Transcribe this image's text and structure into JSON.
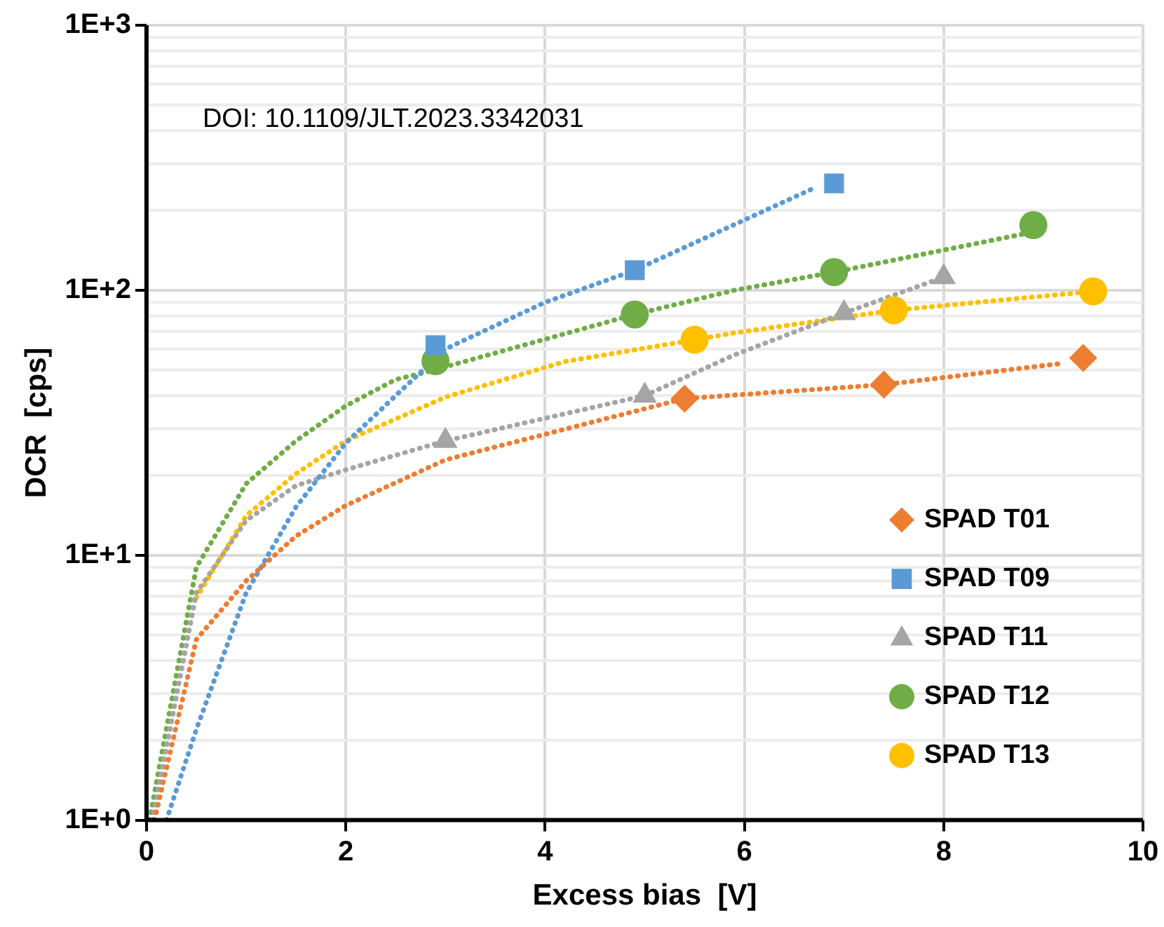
{
  "chart_data": {
    "type": "scatter",
    "xlabel": "Excess bias  [V]",
    "ylabel": "DCR  [cps]",
    "annotations": [
      "DOI: 10.1109/JLT.2023.3342031"
    ],
    "xlim": [
      0,
      10
    ],
    "xticks": [
      0,
      2,
      4,
      6,
      8,
      10
    ],
    "ylim": [
      1,
      1000
    ],
    "yticks": [
      {
        "value": 1,
        "label": "1E+0"
      },
      {
        "value": 10,
        "label": "1E+1"
      },
      {
        "value": 100,
        "label": "1E+2"
      },
      {
        "value": 1000,
        "label": "1E+3"
      }
    ],
    "log": "y",
    "grid": true,
    "legend": "bottom right",
    "series": [
      {
        "type": "line",
        "color": "#ed7d31",
        "marker": "none",
        "line_style": "dotted",
        "x": [
          0.08,
          0.5,
          1,
          1.5,
          2,
          3,
          4.2,
          5.4,
          7.4,
          9.2
        ],
        "values": [
          1,
          4.8,
          8,
          11.8,
          15.4,
          22.9,
          29.9,
          39,
          44,
          53
        ]
      },
      {
        "type": "line",
        "color": "#5b9bd5",
        "marker": "none",
        "line_style": "dotted",
        "x": [
          0.2,
          0.5,
          1,
          1.5,
          2,
          2.5,
          3,
          4,
          4.9,
          6.7
        ],
        "values": [
          1,
          2.2,
          7.2,
          15.2,
          26.5,
          40,
          60,
          90,
          119,
          243
        ]
      },
      {
        "type": "line",
        "color": "#a5a5a5",
        "marker": "none",
        "line_style": "dotted",
        "x": [
          0.06,
          0.5,
          1,
          1.5,
          2,
          2.8,
          3,
          5,
          5.9,
          7,
          8
        ],
        "values": [
          1,
          7.2,
          13.5,
          18.3,
          21,
          25.7,
          27,
          40,
          57,
          82,
          112
        ]
      },
      {
        "type": "line",
        "color": "#70ad47",
        "marker": "none",
        "line_style": "dotted",
        "x": [
          0.03,
          0.5,
          1,
          1.5,
          2,
          2.5,
          2.8,
          4.9,
          5.9,
          6.9,
          8.8
        ],
        "values": [
          1,
          9,
          18.6,
          27,
          36.6,
          46,
          49,
          81,
          100,
          117,
          163
        ]
      },
      {
        "type": "line",
        "color": "#ffc000",
        "marker": "none",
        "line_style": "dotted",
        "x": [
          0.5,
          1,
          1.5,
          2,
          3,
          4.2,
          5.5,
          5.9,
          7.5,
          9.5
        ],
        "values": [
          6.9,
          14.1,
          20.3,
          27,
          39.5,
          53.8,
          65,
          69,
          84,
          99
        ]
      },
      {
        "name": "SPAD T01",
        "color": "#ed7d31",
        "marker": "diamond",
        "x": [
          5.4,
          7.4,
          9.4
        ],
        "values": [
          39,
          44,
          55.5
        ]
      },
      {
        "name": "SPAD T09",
        "color": "#5b9bd5",
        "marker": "square",
        "x": [
          2.9,
          4.9,
          6.9
        ],
        "values": [
          62,
          119,
          253
        ]
      },
      {
        "name": "SPAD T11",
        "color": "#a5a5a5",
        "marker": "triangle",
        "x": [
          3,
          5,
          7,
          8
        ],
        "values": [
          27,
          40,
          82,
          112
        ]
      },
      {
        "name": "SPAD T12",
        "color": "#70ad47",
        "marker": "circle",
        "x": [
          2.9,
          4.9,
          6.9,
          8.9
        ],
        "values": [
          54,
          81,
          117,
          176
        ]
      },
      {
        "name": "SPAD T13",
        "color": "#ffc000",
        "marker": "circle",
        "x": [
          5.5,
          7.5,
          9.5
        ],
        "values": [
          65,
          84,
          99
        ]
      }
    ]
  }
}
